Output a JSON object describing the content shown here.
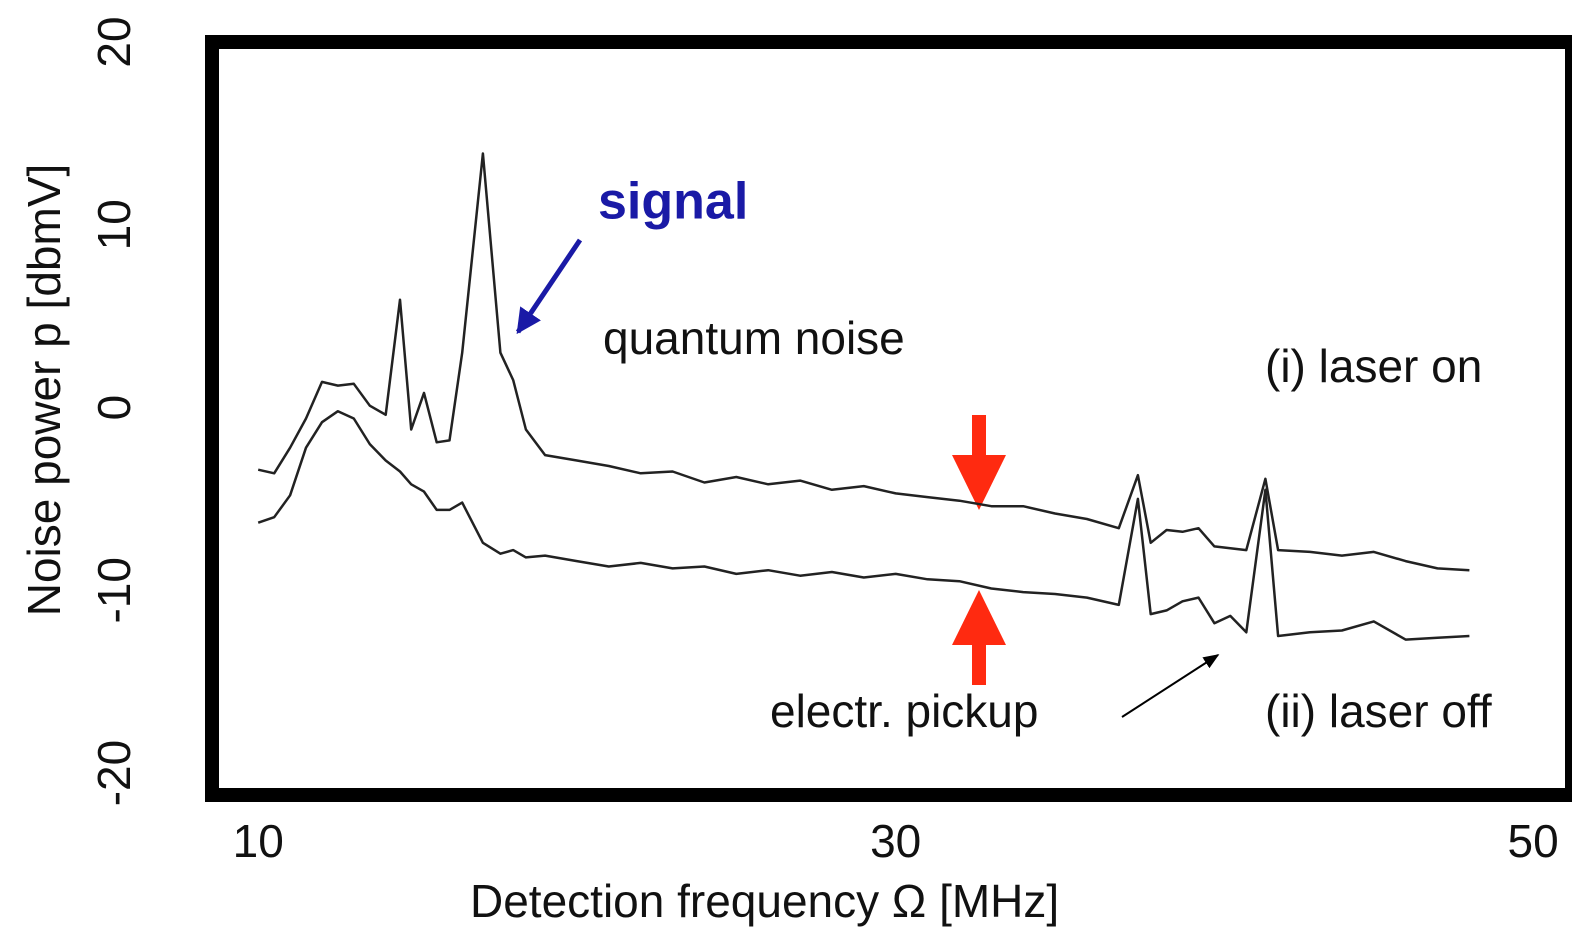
{
  "chart_data": {
    "type": "line",
    "xlabel": "Detection  frequency Ω      [MHz]",
    "ylabel": "Noise power p   [dbmV]",
    "xlim": [
      8.55,
      51
    ],
    "ylim": [
      -21.2,
      20
    ],
    "xticks": [
      10,
      30,
      50
    ],
    "yticks": [
      -20,
      -10,
      0,
      10,
      20
    ],
    "grid": false,
    "annotations": [
      "signal",
      "quantum noise",
      "electr. pickup"
    ],
    "x": [
      10,
      10.5,
      11,
      11.5,
      12,
      12.5,
      13,
      13.5,
      14,
      14.45,
      14.8,
      15.2,
      15.6,
      16,
      16.4,
      17.05,
      17.6,
      18,
      18.4,
      19,
      20,
      21,
      22,
      23,
      24,
      25,
      26,
      27,
      28,
      29,
      30,
      31,
      32,
      33,
      34,
      35,
      36,
      37,
      37.6,
      38,
      38.5,
      39,
      39.5,
      40,
      40.5,
      41,
      41.6,
      42,
      43,
      44,
      45,
      46,
      47,
      48
    ],
    "series": [
      {
        "name": "(i) laser on",
        "color": "#222222",
        "values": [
          -3.4,
          -3.6,
          -2.2,
          -0.6,
          1.4,
          1.2,
          1.3,
          0.1,
          -0.4,
          5.9,
          -1.2,
          0.8,
          -1.9,
          -1.8,
          3,
          13.9,
          3,
          1.5,
          -1.2,
          -2.6,
          -2.9,
          -3.2,
          -3.6,
          -3.5,
          -4.1,
          -3.8,
          -4.2,
          -4,
          -4.5,
          -4.3,
          -4.7,
          -4.9,
          -5.1,
          -5.4,
          -5.4,
          -5.8,
          -6.1,
          -6.6,
          -3.7,
          -7.4,
          -6.7,
          -6.8,
          -6.6,
          -7.6,
          -7.7,
          -7.8,
          -3.9,
          -7.8,
          -7.9,
          -8.1,
          -7.9,
          -8.4,
          -8.8,
          -8.9
        ]
      },
      {
        "name": "(ii) laser off",
        "color": "#222222",
        "values": [
          -6.3,
          -6,
          -4.8,
          -2.2,
          -0.8,
          -0.2,
          -0.6,
          -2,
          -2.9,
          -3.5,
          -4.2,
          -4.6,
          -5.6,
          -5.6,
          -5.2,
          -7.4,
          -8,
          -7.8,
          -8.2,
          -8.1,
          -8.4,
          -8.7,
          -8.5,
          -8.8,
          -8.7,
          -9.1,
          -8.9,
          -9.2,
          -9,
          -9.3,
          -9.1,
          -9.4,
          -9.5,
          -9.9,
          -10.1,
          -10.2,
          -10.4,
          -10.8,
          -5,
          -11.3,
          -11.1,
          -10.6,
          -10.4,
          -11.8,
          -11.4,
          -12.3,
          -4.5,
          -12.5,
          -12.3,
          -12.2,
          -11.7,
          -12.7,
          -12.6,
          -12.5
        ]
      }
    ]
  }
}
